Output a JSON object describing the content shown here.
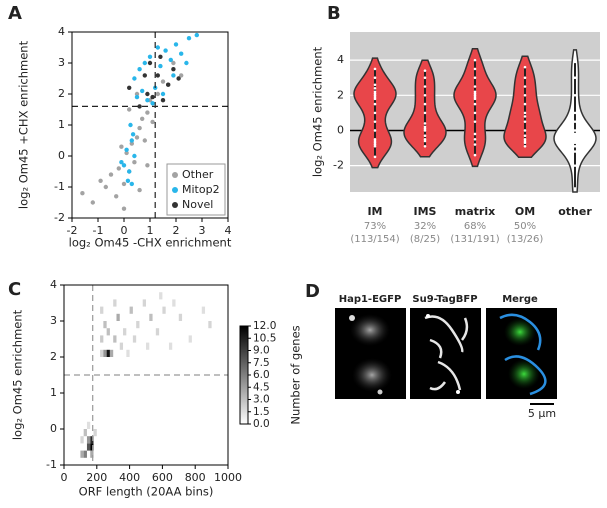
{
  "chart_data": [
    {
      "type": "scatter",
      "panel": "A",
      "xlabel": "log₂ Om45 -CHX enrichment",
      "ylabel": "log₂ Om45 +CHX enrichment",
      "xlim": [
        -2,
        4
      ],
      "ylim": [
        -2,
        4
      ],
      "xticks": [
        -2,
        -1,
        0,
        1,
        2,
        3,
        4
      ],
      "yticks": [
        -2,
        -1,
        0,
        1,
        2,
        3,
        4
      ],
      "vlines": [
        1.2
      ],
      "hlines": [
        1.6
      ],
      "legend": "lower right",
      "series": [
        {
          "name": "Other",
          "color": "#a3a3a3",
          "x": [
            -1.6,
            -1.2,
            -0.9,
            -0.7,
            -0.5,
            -0.3,
            -0.2,
            0,
            0.1,
            0.2,
            0.3,
            0.4,
            0.5,
            0.6,
            0.7,
            0.8,
            0.9,
            1.0,
            1.1,
            1.3,
            1.5,
            1.7,
            0.2,
            -0.1,
            0.5,
            0.0,
            0.6,
            1.9,
            2.2,
            0.9
          ],
          "values": [
            -1.2,
            -1.5,
            -0.8,
            -1.0,
            -0.6,
            -1.3,
            -0.4,
            -0.9,
            0.1,
            -0.5,
            0.4,
            -0.2,
            0.6,
            0.9,
            1.2,
            0.5,
            1.4,
            1.8,
            1.1,
            2.0,
            2.4,
            2.3,
            1.5,
            0.3,
            2.0,
            -1.7,
            -1.1,
            3.0,
            2.6,
            -0.3
          ]
        },
        {
          "name": "Mitop2",
          "color": "#29b6ea",
          "x": [
            0,
            0.1,
            0.2,
            0.3,
            0.4,
            0.25,
            0.15,
            0.35,
            -0.1,
            0.5,
            0.4,
            0.6,
            0.8,
            1.0,
            1.2,
            1.4,
            1.6,
            1.8,
            2.0,
            2.2,
            2.5,
            2.8,
            0.9,
            1.1,
            1.5,
            0.3,
            0.7,
            1.3,
            1.9,
            2.4
          ],
          "values": [
            -0.3,
            0.2,
            -0.5,
            0.5,
            0.0,
            1.0,
            -0.8,
            0.7,
            -0.2,
            1.9,
            2.5,
            2.8,
            3.0,
            3.2,
            2.2,
            2.9,
            3.4,
            3.1,
            3.6,
            3.3,
            3.8,
            3.9,
            1.8,
            1.7,
            2.0,
            -0.9,
            2.1,
            3.5,
            2.6,
            3.0
          ]
        },
        {
          "name": "Novel",
          "color": "#333333",
          "x": [
            0.2,
            0.6,
            0.9,
            1.1,
            1.3,
            1.5,
            1.7,
            1.9,
            1.0,
            1.4,
            2.1,
            0.8
          ],
          "values": [
            2.2,
            1.6,
            2.0,
            1.9,
            2.6,
            1.8,
            2.3,
            2.8,
            3.0,
            3.2,
            2.5,
            2.6
          ]
        }
      ]
    },
    {
      "type": "violin",
      "panel": "B",
      "ylabel": "log₂ Om45 enrichment",
      "ylim": [
        -3.5,
        5.6
      ],
      "yticks": [
        -2,
        0,
        2,
        4
      ],
      "hlines": [
        0
      ],
      "grid": true,
      "background": "#cfcfcf",
      "categories": [
        "IM",
        "IMS",
        "matrix",
        "OM",
        "other"
      ],
      "percent_labels": [
        "73%",
        "32%",
        "68%",
        "50%",
        null
      ],
      "count_labels": [
        "(113/154)",
        "(8/25)",
        "(131/191)",
        "(13/26)",
        null
      ],
      "colors": [
        "#e8464a",
        "#e8464a",
        "#e8464a",
        "#e8464a",
        "#ffffff"
      ],
      "values": [
        [
          -0.9,
          -0.8,
          -0.7,
          -0.6,
          -0.5,
          0,
          0.5,
          1,
          1.5,
          1.8,
          2,
          2.2,
          2.4,
          2.6,
          3,
          3.5,
          -1.5,
          2.1,
          1.9
        ],
        [
          -0.9,
          -0.6,
          -0.3,
          0,
          0.2,
          0.4,
          1,
          1.5,
          2,
          2.5,
          3,
          3.4,
          -0.5,
          0.1
        ],
        [
          -0.8,
          -0.5,
          -0.2,
          0.5,
          1,
          1.5,
          1.8,
          2,
          2.2,
          2.5,
          3,
          3.5,
          4,
          2.1,
          1.9,
          -1.4
        ],
        [
          -0.9,
          -0.7,
          -0.5,
          -0.3,
          0,
          0.5,
          1,
          1.5,
          2,
          2.5,
          3,
          3.6,
          -0.6,
          0.8
        ],
        [
          -3.3,
          -2,
          -1.2,
          -0.9,
          -0.7,
          -0.6,
          -0.5,
          -0.5,
          -0.4,
          -0.4,
          -0.3,
          -0.2,
          0,
          0.5,
          1,
          2,
          3,
          3.9
        ]
      ]
    },
    {
      "type": "heatmap",
      "panel": "C",
      "xlabel": "ORF length (20AA bins)",
      "ylabel": "log₂ Om45 enrichment",
      "colorbar_label": "Number of genes",
      "xlim": [
        0,
        1000
      ],
      "ylim": [
        -1,
        4
      ],
      "xticks": [
        0,
        200,
        400,
        600,
        800,
        1000
      ],
      "yticks": [
        -1,
        0,
        1,
        2,
        3,
        4
      ],
      "vlines": [
        175
      ],
      "hlines": [
        1.5
      ],
      "bin_width": [
        20,
        0.2
      ],
      "clim": [
        0,
        12
      ],
      "cticks": [
        {
          "value": 0,
          "label": "0.0"
        },
        {
          "value": 1.5,
          "label": "1.5"
        },
        {
          "value": 3,
          "label": "3.0"
        },
        {
          "value": 4.5,
          "label": "4.5"
        },
        {
          "value": 6,
          "label": "6.0"
        },
        {
          "value": 7.5,
          "label": "7.5"
        },
        {
          "value": 9,
          "label": "9.0"
        },
        {
          "value": 10.5,
          "label": "10.5"
        },
        {
          "value": 12,
          "label": "12.0"
        }
      ],
      "x": [
        100,
        120,
        140,
        160,
        160,
        140,
        120,
        180,
        100,
        160,
        140,
        220,
        240,
        260,
        280,
        300,
        240,
        320,
        360,
        400,
        440,
        480,
        520,
        560,
        600,
        640,
        700,
        760,
        840,
        880,
        300,
        340,
        380,
        420,
        500,
        260,
        220,
        580,
        660,
        220
      ],
      "y": [
        -0.8,
        -0.8,
        -0.6,
        -0.6,
        -0.4,
        -0.4,
        -0.2,
        -0.2,
        -0.4,
        -0.8,
        0,
        2.0,
        2.0,
        2.0,
        2.0,
        2.4,
        2.8,
        3.0,
        2.6,
        3.2,
        2.8,
        3.4,
        3.0,
        2.6,
        3.2,
        2.2,
        3.0,
        2.4,
        3.2,
        2.8,
        3.4,
        2.2,
        2.0,
        2.4,
        2.2,
        2.6,
        3.2,
        3.6,
        3.4,
        2.4
      ],
      "values": [
        4,
        6,
        8,
        12,
        10,
        5,
        3,
        2,
        2,
        4,
        1.5,
        2,
        5,
        11,
        4,
        3,
        3,
        4,
        2,
        3,
        2,
        2,
        3,
        2,
        2,
        1.5,
        2,
        1.5,
        1.5,
        2,
        2,
        2,
        1.5,
        2,
        1.5,
        3,
        2,
        1.5,
        1.5,
        2.5
      ]
    }
  ],
  "micrograph": {
    "panel": "D",
    "labels": [
      "Hap1-EGFP",
      "Su9-TagBFP",
      "Merge"
    ],
    "scale_bar": "5 µm"
  }
}
